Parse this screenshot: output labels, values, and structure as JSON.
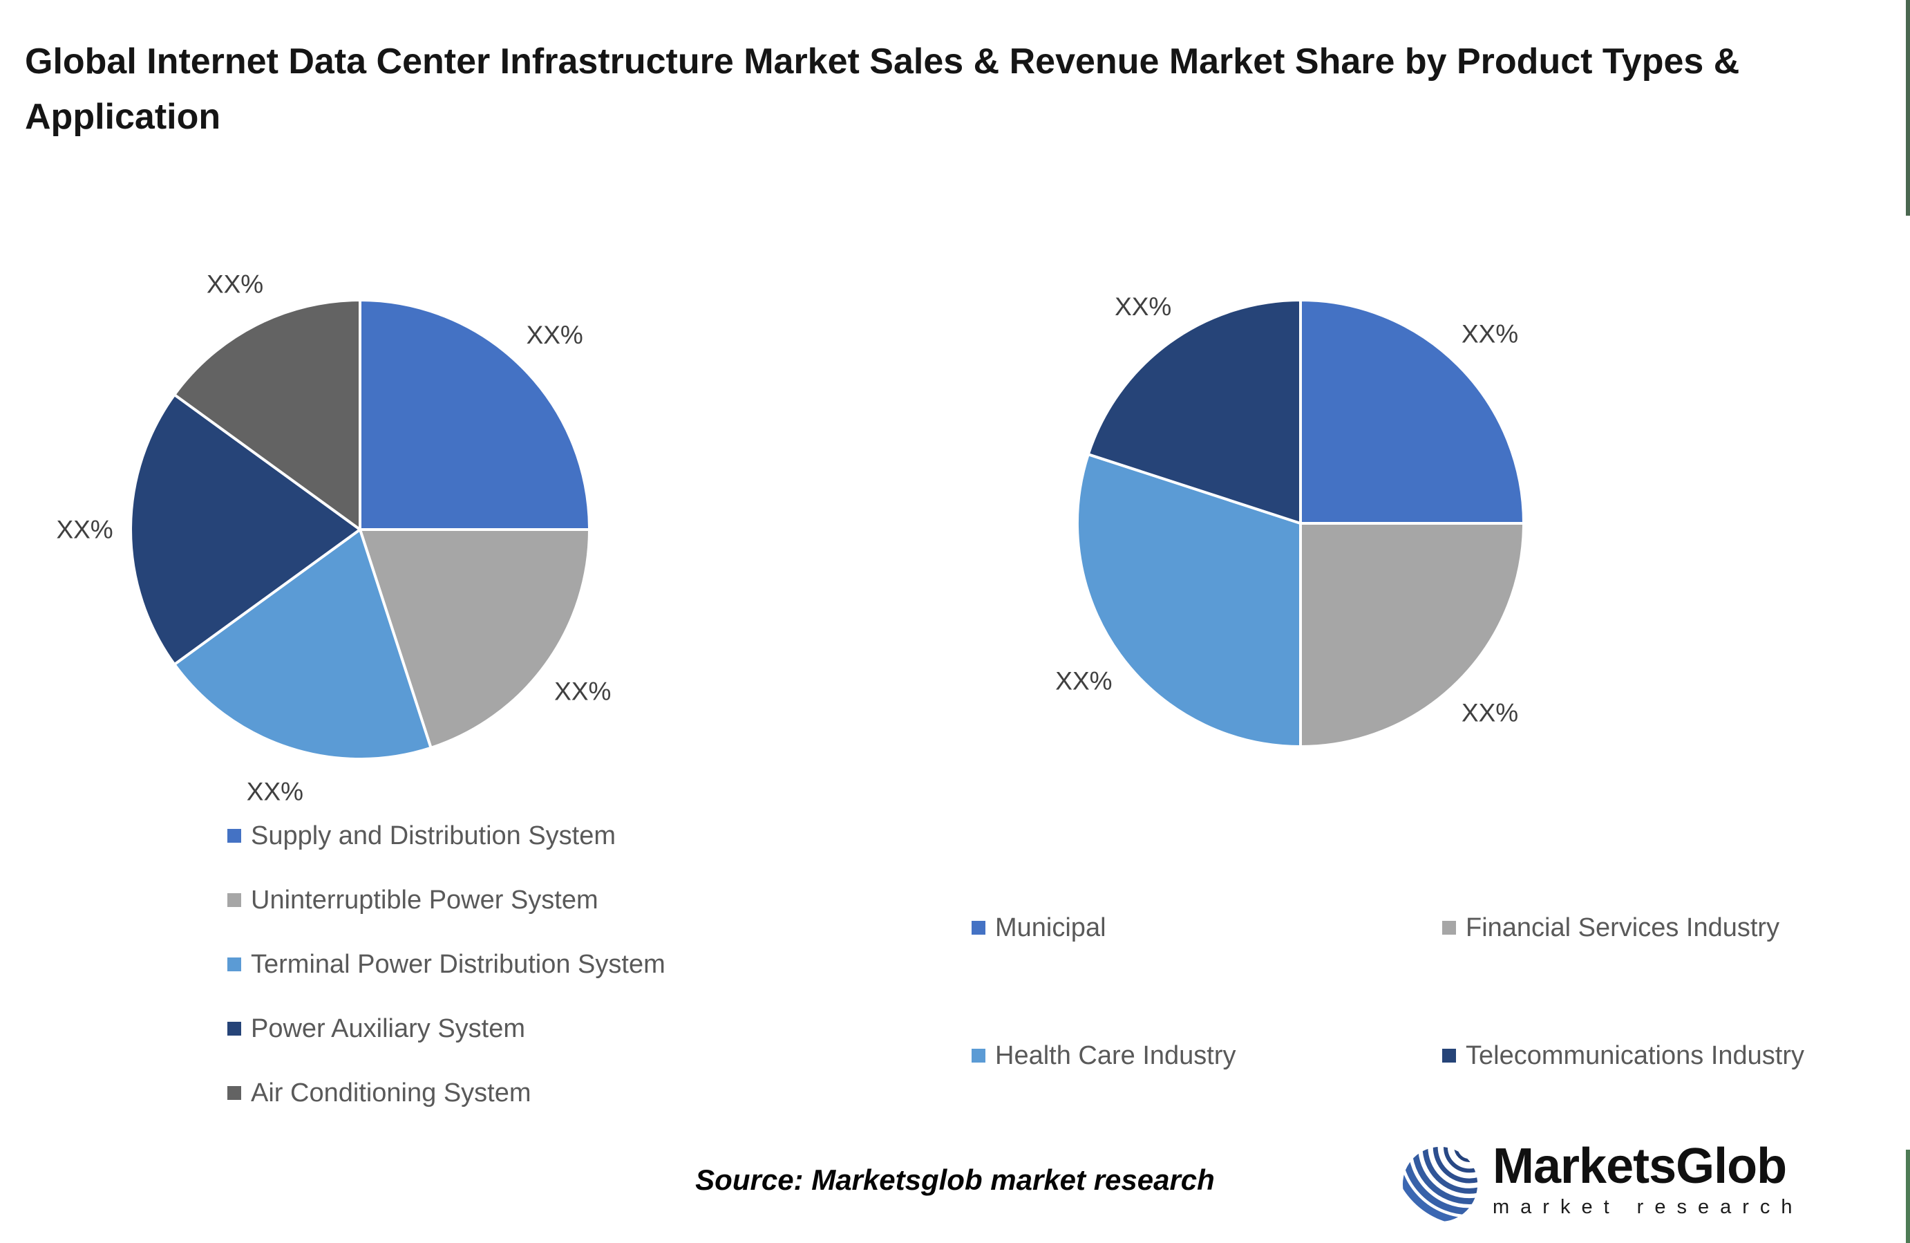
{
  "title": "Global Internet Data Center Infrastructure Market Sales & Revenue Market Share by Product Types & Application",
  "source_note": "Source: Marketsglob market research",
  "logo": {
    "name": "MarketsGlob",
    "subtitle": "market research",
    "globe_color_dark": "#24427C",
    "globe_color_light": "#3B67B2"
  },
  "colors": {
    "title_text": "#151515",
    "slice_label_text": "#404040",
    "legend_text": "#595959",
    "background": "#FFFFFF",
    "pie_separator": "#FFFFFF",
    "edge_strip_top": "#4A6750",
    "edge_strip_bottom": "#4E7B55"
  },
  "chart_data": [
    {
      "type": "pie",
      "position": "left",
      "start_angle_deg": 0,
      "direction": "clockwise",
      "values_estimated_from_geometry": true,
      "legend_position": "below, single column",
      "segments": [
        {
          "name": "Supply and Distribution System",
          "value": 25,
          "color": "#4472C4",
          "label": "XX%"
        },
        {
          "name": "Uninterruptible Power System",
          "value": 20,
          "color": "#A6A6A6",
          "label": "XX%"
        },
        {
          "name": "Terminal Power Distribution System",
          "value": 20,
          "color": "#5B9BD5",
          "label": "XX%"
        },
        {
          "name": "Power Auxiliary System",
          "value": 20,
          "color": "#264478",
          "label": "XX%"
        },
        {
          "name": "Air Conditioning System",
          "value": 15,
          "color": "#636363",
          "label": "XX%"
        }
      ]
    },
    {
      "type": "pie",
      "position": "right",
      "start_angle_deg": 0,
      "direction": "clockwise",
      "values_estimated_from_geometry": true,
      "legend_position": "below, 2x2 grid",
      "segments": [
        {
          "name": "Municipal",
          "value": 25,
          "color": "#4472C4",
          "label": "XX%"
        },
        {
          "name": "Financial Services Industry",
          "value": 25,
          "color": "#A6A6A6",
          "label": "XX%"
        },
        {
          "name": "Health Care Industry",
          "value": 30,
          "color": "#5B9BD5",
          "label": "XX%"
        },
        {
          "name": "Telecommunications Industry",
          "value": 20,
          "color": "#264478",
          "label": "XX%"
        }
      ]
    }
  ]
}
